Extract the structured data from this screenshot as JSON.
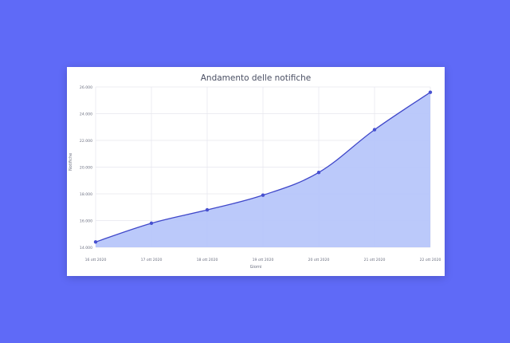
{
  "colors": {
    "background": "#5F6AF7",
    "line": "#3F47C9",
    "area": "#B7C6FA",
    "point": "#4750D0",
    "grid": "#E6E6EE"
  },
  "chart_data": {
    "type": "area",
    "title": "Andamento delle notifiche",
    "xlabel": "Giorni",
    "ylabel": "Notifiche",
    "categories": [
      "16 ott 2020",
      "17 ott 2020",
      "18 ott 2020",
      "19 ott 2020",
      "20 ott 2020",
      "21 ott 2020",
      "22 ott 2020"
    ],
    "values": [
      14400,
      15800,
      16800,
      17900,
      19600,
      22800,
      25600
    ],
    "ylim": [
      14000,
      26000
    ],
    "yticks": [
      14000,
      16000,
      18000,
      20000,
      22000,
      24000,
      26000
    ],
    "ytick_labels": [
      "14.000",
      "16.000",
      "18.000",
      "20.000",
      "22.000",
      "24.000",
      "26.000"
    ],
    "grid": true,
    "legend": "none"
  }
}
